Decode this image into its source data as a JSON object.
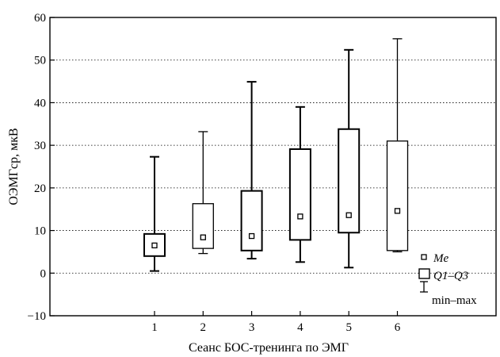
{
  "chart_data": {
    "type": "boxplot",
    "xlabel": "Сеанс БОС-тренинга по ЭМГ",
    "ylabel": "ОЭМГср, мкВ",
    "ylim": [
      -10,
      60
    ],
    "yticks": [
      -10,
      0,
      10,
      20,
      30,
      40,
      50,
      60
    ],
    "ytick_labels": [
      "−10",
      "0",
      "10",
      "20",
      "30",
      "40",
      "50",
      "60"
    ],
    "grid": "horizontal dotted",
    "categories": [
      "1",
      "2",
      "3",
      "4",
      "5",
      "6"
    ],
    "series": [
      {
        "min": [
          0.5,
          4.6,
          3.4,
          2.6,
          1.3,
          5.0
        ],
        "q1": [
          4.0,
          5.8,
          5.3,
          7.8,
          9.5,
          5.3
        ],
        "median": [
          6.5,
          8.4,
          8.7,
          13.3,
          13.6,
          14.6
        ],
        "q3": [
          9.2,
          16.3,
          19.3,
          29.1,
          33.8,
          31.0
        ],
        "max": [
          27.3,
          33.2,
          44.9,
          39.0,
          52.4,
          55.0
        ]
      }
    ],
    "legend": {
      "position": "bottom-right",
      "entries": [
        {
          "label_main": "Me",
          "label_suffix": ""
        },
        {
          "label_main": "Q1–Q3",
          "label_suffix": ""
        },
        {
          "label_main": "min–max",
          "label_suffix": ""
        }
      ]
    }
  }
}
